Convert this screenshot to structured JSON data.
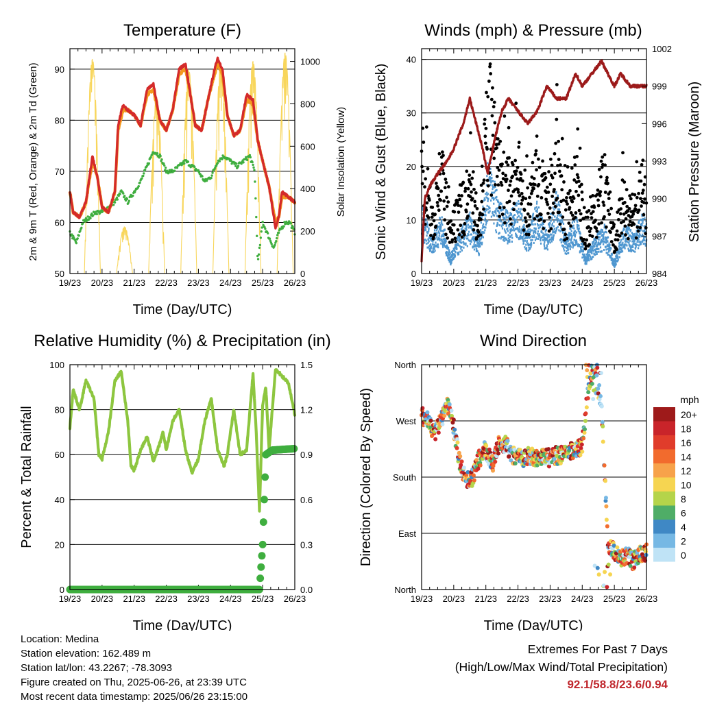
{
  "info": {
    "location": "Location: Medina",
    "elevation": "Station elevation: 162.489 m",
    "latlon": "Station lat/lon: 43.2267; -78.3093",
    "created": "Figure created on Thu, 2025-06-26, at 23:39 UTC",
    "recent": "Most recent data timestamp: 2025/06/26 23:15:00"
  },
  "extremes": {
    "line1": "Extremes For Past 7 Days",
    "line2": "(High/Low/Max Wind/Total Precipitation)",
    "values": "92.1/58.8/23.6/0.94"
  },
  "colors": {
    "temp": "#d42a2a",
    "temp9m": "#f39a1e",
    "dewpoint": "#3fae3f",
    "solar": "#f7d24a",
    "sonic": "#4f97d0",
    "gust": "#000000",
    "pressure": "#9c1a1a",
    "rh": "#8dc63f",
    "precip": "#3fae3f"
  },
  "chart_data": [
    {
      "type": "line",
      "title": "Temperature (F)",
      "xlabel": "Time (Day/UTC)",
      "ylabel": "2m & 9m T (Red, Orange) & 2m Td (Green)",
      "ylabel_right": "Solar Insolation (Yellow)",
      "x_ticks": [
        "19/23",
        "20/23",
        "21/23",
        "22/23",
        "23/23",
        "24/23",
        "25/23",
        "26/23"
      ],
      "xlim_days": [
        0,
        7
      ],
      "ylim": [
        50,
        94
      ],
      "y_ticks": [
        50,
        60,
        70,
        80,
        90
      ],
      "y2lim": [
        0,
        1060
      ],
      "y2_ticks": [
        0,
        200,
        400,
        600,
        800,
        1000
      ],
      "grid": "horizontal",
      "series": [
        {
          "key": "temp",
          "x": [
            0,
            0.1,
            0.3,
            0.5,
            0.7,
            0.85,
            1.0,
            1.2,
            1.4,
            1.5,
            1.65,
            1.8,
            2.0,
            2.2,
            2.4,
            2.6,
            2.8,
            3.0,
            3.2,
            3.4,
            3.6,
            3.75,
            3.9,
            4.1,
            4.3,
            4.5,
            4.6,
            4.75,
            4.9,
            5.1,
            5.3,
            5.5,
            5.7,
            5.85,
            6.0,
            6.2,
            6.4,
            6.5,
            6.6,
            6.8,
            7.0
          ],
          "y": [
            66,
            62,
            61,
            64,
            73,
            69,
            63,
            62,
            66,
            79,
            83,
            82,
            81,
            79,
            86,
            87,
            80,
            78,
            82,
            90,
            91,
            85,
            79,
            78,
            84,
            90,
            92,
            90,
            81,
            77,
            78,
            85,
            84,
            76,
            72,
            67,
            59,
            61,
            66,
            65,
            64
          ]
        },
        {
          "key": "temp9m",
          "x": [
            0,
            0.1,
            0.3,
            0.5,
            0.7,
            0.85,
            1.0,
            1.2,
            1.4,
            1.5,
            1.65,
            1.8,
            2.0,
            2.2,
            2.4,
            2.6,
            2.8,
            3.0,
            3.2,
            3.4,
            3.6,
            3.75,
            3.9,
            4.1,
            4.3,
            4.5,
            4.6,
            4.75,
            4.9,
            5.1,
            5.3,
            5.5,
            5.7,
            5.85,
            6.0,
            6.2,
            6.4,
            6.5,
            6.6,
            6.8,
            7.0
          ],
          "y": [
            66,
            62,
            61,
            64,
            72,
            69,
            63,
            62,
            66,
            78,
            82,
            82,
            81,
            79,
            85,
            86,
            80,
            78,
            82,
            89,
            90,
            85,
            79,
            78,
            84,
            89,
            91,
            89,
            81,
            77,
            78,
            84,
            83,
            76,
            72,
            67,
            60,
            61,
            65,
            65,
            64
          ]
        },
        {
          "key": "dewpoint",
          "x": [
            0,
            0.2,
            0.4,
            0.6,
            0.8,
            1.0,
            1.2,
            1.4,
            1.6,
            1.8,
            2.0,
            2.2,
            2.4,
            2.6,
            2.8,
            3.0,
            3.2,
            3.4,
            3.6,
            3.8,
            4.0,
            4.2,
            4.4,
            4.6,
            4.8,
            5.0,
            5.2,
            5.4,
            5.6,
            5.75,
            5.85,
            6.0,
            6.2,
            6.35,
            6.5,
            6.7,
            6.85,
            7.0
          ],
          "y": [
            58,
            56,
            60,
            61,
            62,
            62,
            63,
            64,
            66,
            64,
            66,
            68,
            71,
            74,
            73,
            70,
            70,
            71,
            72,
            71,
            70,
            68,
            69,
            72,
            73,
            72,
            71,
            72,
            73,
            70,
            52,
            60,
            57,
            55,
            58,
            60,
            60,
            58
          ]
        },
        {
          "key": "solar_days",
          "peaks": [
            1010,
            220,
            830,
            960,
            990,
            1000,
            1040,
            560
          ],
          "centers": [
            0.7,
            1.7,
            2.7,
            3.7,
            4.7,
            5.7,
            6.7,
            7.7
          ]
        }
      ]
    },
    {
      "type": "scatter",
      "title": "Winds (mph) & Pressure (mb)",
      "xlabel": "Time (Day/UTC)",
      "ylabel": "Sonic Wind & Gust (Blue, Black)",
      "ylabel_right": "Station Pressure (Maroon)",
      "x_ticks": [
        "19/23",
        "20/23",
        "21/23",
        "22/23",
        "23/23",
        "24/23",
        "25/23",
        "26/23"
      ],
      "xlim_days": [
        0,
        7
      ],
      "ylim": [
        0,
        42
      ],
      "y_ticks": [
        0,
        10,
        20,
        30,
        40
      ],
      "y2lim": [
        984,
        1002
      ],
      "y2_ticks": [
        984,
        987,
        990,
        993,
        996,
        999,
        1002
      ],
      "series": [
        {
          "key": "gust_env",
          "x": [
            0,
            0.3,
            0.6,
            0.9,
            1.2,
            1.5,
            1.8,
            2.1,
            2.4,
            2.7,
            3.0,
            3.3,
            3.6,
            3.9,
            4.2,
            4.5,
            4.8,
            5.1,
            5.4,
            5.7,
            6.0,
            6.3,
            6.6,
            6.9,
            7.0
          ],
          "y": [
            25,
            12,
            22,
            8,
            14,
            18,
            12,
            35,
            22,
            18,
            22,
            14,
            22,
            14,
            24,
            12,
            20,
            10,
            14,
            20,
            8,
            16,
            12,
            18,
            16
          ]
        },
        {
          "key": "sonic_env",
          "x": [
            0,
            0.3,
            0.6,
            0.9,
            1.2,
            1.5,
            1.8,
            2.1,
            2.4,
            2.7,
            3.0,
            3.3,
            3.6,
            3.9,
            4.2,
            4.5,
            4.8,
            5.1,
            5.4,
            5.7,
            6.0,
            6.3,
            6.6,
            6.9,
            7.0
          ],
          "y": [
            12,
            6,
            10,
            3,
            7,
            10,
            6,
            20,
            12,
            10,
            12,
            7,
            12,
            7,
            14,
            6,
            10,
            3,
            6,
            8,
            2,
            8,
            7,
            10,
            9
          ]
        },
        {
          "key": "pressure",
          "x": [
            0,
            0.1,
            0.25,
            0.5,
            0.8,
            1.0,
            1.3,
            1.5,
            1.7,
            1.9,
            2.05,
            2.3,
            2.5,
            2.7,
            3.0,
            3.3,
            3.6,
            3.9,
            4.2,
            4.5,
            4.8,
            5.0,
            5.3,
            5.6,
            5.8,
            6.0,
            6.2,
            6.5,
            6.8,
            7.0
          ],
          "y": [
            985,
            990,
            991,
            992,
            993,
            994,
            996,
            998,
            996,
            994,
            992,
            995,
            997,
            998,
            997,
            996,
            997,
            999,
            998,
            998,
            1000,
            999,
            1000,
            1001,
            1000,
            999,
            1000,
            999,
            999,
            999
          ]
        }
      ]
    },
    {
      "type": "line",
      "title": "Relative Humidity (%) & Precipitation (in)",
      "xlabel": "Time (Day/UTC)",
      "ylabel": "Percent & Total Rainfall",
      "x_ticks": [
        "19/23",
        "20/23",
        "21/23",
        "22/23",
        "23/23",
        "24/23",
        "25/23",
        "26/23"
      ],
      "xlim_days": [
        0,
        7
      ],
      "ylim": [
        0,
        100
      ],
      "y_ticks": [
        0,
        20,
        40,
        60,
        80,
        100
      ],
      "y2lim": [
        0,
        1.5
      ],
      "y2_ticks": [
        "0.0",
        "0.3",
        "0.6",
        "0.9",
        "1.2",
        "1.5"
      ],
      "grid": "horizontal",
      "series": [
        {
          "key": "rh",
          "x": [
            0,
            0.1,
            0.3,
            0.5,
            0.75,
            0.9,
            1.0,
            1.2,
            1.4,
            1.6,
            1.8,
            1.9,
            2.0,
            2.2,
            2.4,
            2.6,
            2.8,
            2.9,
            3.0,
            3.2,
            3.4,
            3.6,
            3.8,
            4.0,
            4.2,
            4.4,
            4.6,
            4.8,
            4.9,
            5.1,
            5.3,
            5.5,
            5.7,
            5.8,
            5.9,
            6.0,
            6.1,
            6.2,
            6.4,
            6.6,
            6.8,
            7.0
          ],
          "y": [
            72,
            89,
            80,
            93,
            85,
            60,
            58,
            70,
            93,
            97,
            75,
            55,
            53,
            62,
            68,
            57,
            65,
            70,
            62,
            75,
            80,
            62,
            52,
            58,
            75,
            85,
            62,
            55,
            60,
            80,
            60,
            62,
            96,
            70,
            35,
            82,
            90,
            62,
            98,
            95,
            92,
            78
          ]
        },
        {
          "key": "precip",
          "x": [
            0,
            5.5,
            5.9,
            6.0,
            6.1,
            6.3,
            7.0
          ],
          "y": [
            0,
            0,
            0,
            0.3,
            0.9,
            0.93,
            0.94
          ]
        }
      ]
    },
    {
      "type": "scatter",
      "title": "Wind Direction",
      "xlabel": "Time (Day/UTC)",
      "ylabel": "Direction (Colored By Speed)",
      "x_ticks": [
        "19/23",
        "20/23",
        "21/23",
        "22/23",
        "23/23",
        "24/23",
        "25/23",
        "26/23"
      ],
      "xlim_days": [
        0,
        7
      ],
      "ylim": [
        0,
        360
      ],
      "y_tick_labels": [
        "North",
        "East",
        "South",
        "West",
        "North"
      ],
      "grid": "horizontal",
      "legend_title": "mph",
      "legend_labels": [
        "20+",
        "18",
        "16",
        "14",
        "12",
        "10",
        "8",
        "6",
        "4",
        "2",
        "0"
      ],
      "legend_colors": [
        "#9e1a1a",
        "#c9242a",
        "#e03c2b",
        "#f26b2d",
        "#f7a24a",
        "#f6d551",
        "#b5d44a",
        "#4fad67",
        "#3f88c5",
        "#76b8e4",
        "#bfe3f6"
      ],
      "legend_placement": "right",
      "series": [
        {
          "key": "direction",
          "x": [
            0,
            0.2,
            0.4,
            0.6,
            0.8,
            1.0,
            1.2,
            1.4,
            1.6,
            1.8,
            2.0,
            2.2,
            2.4,
            2.6,
            2.8,
            3.0,
            3.2,
            3.4,
            3.6,
            3.8,
            4.0,
            4.2,
            4.4,
            4.6,
            4.8,
            5.0,
            5.2,
            5.4,
            5.5,
            5.6,
            5.8,
            6.0,
            6.2,
            6.4,
            6.6,
            6.8,
            7.0
          ],
          "y": [
            280,
            270,
            250,
            270,
            300,
            260,
            200,
            175,
            180,
            210,
            225,
            200,
            230,
            235,
            215,
            215,
            210,
            215,
            210,
            215,
            210,
            215,
            215,
            220,
            225,
            230,
            330,
            345,
            320,
            300,
            70,
            60,
            50,
            55,
            45,
            55,
            60
          ]
        }
      ]
    }
  ],
  "labels": {
    "t1_title": "Temperature (F)",
    "t2_title": "Winds (mph) & Pressure (mb)",
    "t3_title": "Relative Humidity (%) & Precipitation (in)",
    "t4_title": "Wind Direction",
    "xlabel": "Time (Day/UTC)",
    "t1_ylabel": "2m & 9m T (Red, Orange) & 2m Td (Green)",
    "t1_ylabel_right": "Solar Insolation (Yellow)",
    "t2_ylabel": "Sonic Wind & Gust (Blue, Black)",
    "t2_ylabel_right": "Station Pressure (Maroon)",
    "t3_ylabel": "Percent & Total Rainfall",
    "t4_ylabel": "Direction (Colored By Speed)"
  }
}
